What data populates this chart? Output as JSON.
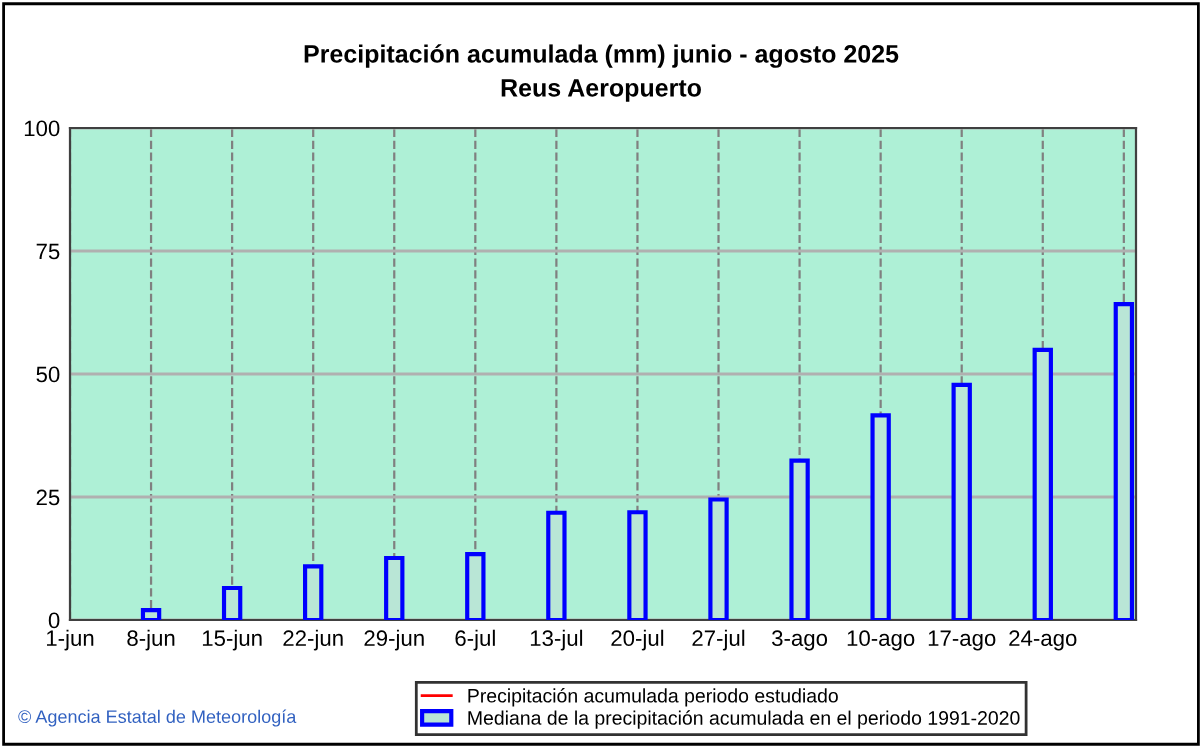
{
  "chart_data": {
    "type": "bar",
    "title": "Precipitación acumulada (mm) junio - agosto 2025",
    "subtitle": "Reus Aeropuerto",
    "categories": [
      "1-jun",
      "8-jun",
      "15-jun",
      "22-jun",
      "29-jun",
      "6-jul",
      "13-jul",
      "20-jul",
      "27-jul",
      "3-ago",
      "10-ago",
      "17-ago",
      "24-ago",
      null
    ],
    "series": [
      {
        "name": "Precipitación acumulada periodo estudiado",
        "type": "line",
        "color": "#ff0000",
        "values": [
          null,
          null,
          null,
          null,
          null,
          null,
          null,
          null,
          null,
          null,
          null,
          null,
          null,
          null
        ]
      },
      {
        "name": "Mediana de la precipitación acumulada en el periodo 1991-2020",
        "color": "#0000ff",
        "values": [
          null,
          2,
          6.5,
          10.9,
          12.6,
          13.4,
          21.8,
          21.9,
          24.5,
          32.4,
          41.6,
          47.8,
          54.9,
          64.2
        ]
      }
    ],
    "ylim": [
      0,
      100
    ],
    "yticks": [
      0,
      25,
      50,
      75,
      100
    ],
    "grid": true,
    "legend": "bottom",
    "annotations": [
      "© Agencia Estatal de Meteorología"
    ]
  }
}
